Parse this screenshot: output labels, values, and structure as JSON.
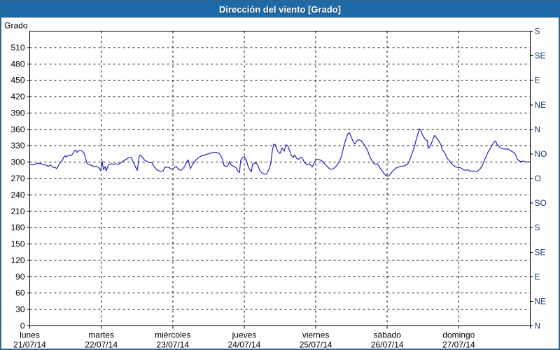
{
  "window": {
    "title": "Dirección del viento [Grado]"
  },
  "colors": {
    "titlebar": "#1e6aa8",
    "titlebar_border": "#15507f",
    "outer_border": "#2d6595",
    "line": "#2222c0",
    "grid": "#000000",
    "left_label": "#000000",
    "right_label": "#1b3c6e",
    "day_label": "#000000"
  },
  "chart_data": {
    "type": "line",
    "title": "Dirección del viento [Grado]",
    "ylabel": "Grado",
    "grid": "dashed, every 30 degrees horizontal, daily vertical",
    "legend_position": "none",
    "y_axis_left": {
      "label": "Grado",
      "min": 0,
      "max": 540,
      "tick_step": 30,
      "tick_labels": [
        "0",
        "30",
        "60",
        "90",
        "120",
        "150",
        "180",
        "210",
        "240",
        "270",
        "300",
        "330",
        "360",
        "390",
        "420",
        "450",
        "480",
        "510"
      ]
    },
    "y_axis_right": {
      "tick_step": 45,
      "labels_bottom_to_top": [
        "N",
        "NE",
        "E",
        "SE",
        "S",
        "SO",
        "O",
        "NO",
        "N",
        "NE",
        "E",
        "SE",
        "S"
      ]
    },
    "x_axis": {
      "unit": "hours since Monday 00:00",
      "min": 0,
      "max": 168,
      "days": [
        {
          "name": "lunes",
          "date": "21/07/14"
        },
        {
          "name": "martes",
          "date": "22/07/14"
        },
        {
          "name": "miércoles",
          "date": "23/07/14"
        },
        {
          "name": "jueves",
          "date": "24/07/14"
        },
        {
          "name": "viernes",
          "date": "25/07/14"
        },
        {
          "name": "sábado",
          "date": "26/07/14"
        },
        {
          "name": "domingo",
          "date": "27/07/14"
        }
      ]
    },
    "series": [
      {
        "name": "Dirección del viento",
        "color": "#2222c0",
        "points": [
          [
            0,
            296
          ],
          [
            0.6,
            295
          ],
          [
            1.5,
            295
          ],
          [
            2.2,
            297
          ],
          [
            2.9,
            298
          ],
          [
            3.9,
            297
          ],
          [
            4.6,
            295
          ],
          [
            5.3,
            295
          ],
          [
            6.2,
            292
          ],
          [
            6.9,
            295
          ],
          [
            7.6,
            291
          ],
          [
            8.6,
            290
          ],
          [
            9,
            288
          ],
          [
            9.8,
            295
          ],
          [
            10.2,
            299
          ],
          [
            10.9,
            303
          ],
          [
            11.4,
            309
          ],
          [
            11.9,
            312
          ],
          [
            12.3,
            309
          ],
          [
            12.8,
            312
          ],
          [
            13.3,
            313
          ],
          [
            14,
            312
          ],
          [
            14.5,
            316
          ],
          [
            14.9,
            320
          ],
          [
            15.4,
            322
          ],
          [
            15.9,
            318
          ],
          [
            16.3,
            320
          ],
          [
            16.8,
            322
          ],
          [
            17.3,
            321
          ],
          [
            17.7,
            320
          ],
          [
            18.2,
            316
          ],
          [
            18.7,
            308
          ],
          [
            19.1,
            299
          ],
          [
            19.6,
            296
          ],
          [
            20.1,
            295
          ],
          [
            20.8,
            294
          ],
          [
            21.5,
            292
          ],
          [
            22.2,
            292
          ],
          [
            22.9,
            291
          ],
          [
            23.4,
            288
          ],
          [
            23.8,
            284
          ],
          [
            24.3,
            302
          ],
          [
            24.8,
            286
          ],
          [
            25.3,
            292
          ],
          [
            25.7,
            284
          ],
          [
            26.4,
            295
          ],
          [
            27.4,
            297
          ],
          [
            28.1,
            296
          ],
          [
            28.8,
            297
          ],
          [
            29.7,
            296
          ],
          [
            30.4,
            298
          ],
          [
            31.6,
            303
          ],
          [
            32.3,
            305
          ],
          [
            33.2,
            308
          ],
          [
            34,
            309
          ],
          [
            34.7,
            301
          ],
          [
            35.6,
            290
          ],
          [
            36.1,
            285
          ],
          [
            36.8,
            312
          ],
          [
            37.2,
            313
          ],
          [
            37.9,
            308
          ],
          [
            38.7,
            303
          ],
          [
            39.4,
            301
          ],
          [
            40.3,
            299
          ],
          [
            41,
            299
          ],
          [
            41.7,
            292
          ],
          [
            42.6,
            286
          ],
          [
            43.4,
            284
          ],
          [
            44.1,
            283
          ],
          [
            44.8,
            284
          ],
          [
            45.2,
            290
          ],
          [
            46.2,
            291
          ],
          [
            46.9,
            290
          ],
          [
            47.3,
            287
          ],
          [
            48.1,
            288
          ],
          [
            48.8,
            291
          ],
          [
            49.2,
            292
          ],
          [
            49.9,
            287
          ],
          [
            50.6,
            285
          ],
          [
            51.1,
            286
          ],
          [
            52,
            292
          ],
          [
            52.8,
            302
          ],
          [
            53.2,
            304
          ],
          [
            53.9,
            288
          ],
          [
            54.6,
            295
          ],
          [
            55.3,
            301
          ],
          [
            56.3,
            307
          ],
          [
            57.5,
            311
          ],
          [
            58.6,
            313
          ],
          [
            59.8,
            315
          ],
          [
            61,
            317
          ],
          [
            61.7,
            318
          ],
          [
            62.6,
            318
          ],
          [
            63.3,
            317
          ],
          [
            64,
            313
          ],
          [
            64.7,
            305
          ],
          [
            65.2,
            294
          ],
          [
            65.9,
            292
          ],
          [
            66.4,
            293
          ],
          [
            67.1,
            301
          ],
          [
            67.5,
            295
          ],
          [
            68.5,
            292
          ],
          [
            69.2,
            290
          ],
          [
            69.7,
            285
          ],
          [
            70.4,
            281
          ],
          [
            70.8,
            303
          ],
          [
            71.5,
            309
          ],
          [
            72,
            310
          ],
          [
            72.7,
            304
          ],
          [
            73.2,
            294
          ],
          [
            73.7,
            287
          ],
          [
            74.4,
            282
          ],
          [
            74.8,
            296
          ],
          [
            75.8,
            299
          ],
          [
            76.5,
            295
          ],
          [
            77.2,
            285
          ],
          [
            77.9,
            280
          ],
          [
            78.8,
            278
          ],
          [
            79.5,
            278
          ],
          [
            80.2,
            286
          ],
          [
            80.9,
            297
          ],
          [
            81.4,
            320
          ],
          [
            81.9,
            333
          ],
          [
            82.4,
            332
          ],
          [
            82.8,
            325
          ],
          [
            83.5,
            318
          ],
          [
            84,
            316
          ],
          [
            84.7,
            326
          ],
          [
            85.4,
            320
          ],
          [
            86.1,
            332
          ],
          [
            86.6,
            330
          ],
          [
            87.3,
            320
          ],
          [
            87.8,
            312
          ],
          [
            88.5,
            309
          ],
          [
            88.9,
            313
          ],
          [
            89.6,
            307
          ],
          [
            90.1,
            305
          ],
          [
            90.8,
            308
          ],
          [
            91.5,
            308
          ],
          [
            92.2,
            299
          ],
          [
            93.2,
            295
          ],
          [
            93.9,
            297
          ],
          [
            94.8,
            291
          ],
          [
            95.5,
            299
          ],
          [
            96.2,
            305
          ],
          [
            96.9,
            305
          ],
          [
            97.9,
            303
          ],
          [
            98.6,
            299
          ],
          [
            99.3,
            295
          ],
          [
            100.2,
            290
          ],
          [
            100.9,
            287
          ],
          [
            101.6,
            287
          ],
          [
            102.6,
            291
          ],
          [
            103.3,
            296
          ],
          [
            104,
            302
          ],
          [
            104.7,
            312
          ],
          [
            105.4,
            329
          ],
          [
            106.1,
            342
          ],
          [
            106.8,
            352
          ],
          [
            107.3,
            354
          ],
          [
            108,
            345
          ],
          [
            108.7,
            336
          ],
          [
            109.1,
            333
          ],
          [
            109.8,
            339
          ],
          [
            110.6,
            341
          ],
          [
            111.3,
            339
          ],
          [
            112,
            334
          ],
          [
            112.7,
            328
          ],
          [
            113.4,
            322
          ],
          [
            113.8,
            315
          ],
          [
            114.5,
            306
          ],
          [
            115.3,
            299
          ],
          [
            116,
            296
          ],
          [
            116.7,
            297
          ],
          [
            117.4,
            291
          ],
          [
            118.1,
            285
          ],
          [
            118.8,
            280
          ],
          [
            119.5,
            276
          ],
          [
            120.2,
            274
          ],
          [
            120.9,
            277
          ],
          [
            121.6,
            282
          ],
          [
            122.3,
            286
          ],
          [
            123.2,
            290
          ],
          [
            124.4,
            292
          ],
          [
            125.6,
            293
          ],
          [
            126.8,
            296
          ],
          [
            127.5,
            303
          ],
          [
            128.2,
            314
          ],
          [
            128.9,
            324
          ],
          [
            129.6,
            339
          ],
          [
            130.3,
            352
          ],
          [
            130.8,
            361
          ],
          [
            131.2,
            358
          ],
          [
            131.7,
            352
          ],
          [
            132.2,
            346
          ],
          [
            132.9,
            341
          ],
          [
            133.4,
            340
          ],
          [
            133.8,
            325
          ],
          [
            134.5,
            330
          ],
          [
            135.2,
            340
          ],
          [
            135.9,
            349
          ],
          [
            136.6,
            344
          ],
          [
            137.3,
            339
          ],
          [
            138,
            332
          ],
          [
            138.5,
            323
          ],
          [
            139.2,
            318
          ],
          [
            139.7,
            312
          ],
          [
            140.4,
            305
          ],
          [
            140.9,
            303
          ],
          [
            141.3,
            299
          ],
          [
            142,
            295
          ],
          [
            142.7,
            292
          ],
          [
            143.7,
            290
          ],
          [
            144.4,
            290
          ],
          [
            145.1,
            288
          ],
          [
            145.6,
            286
          ],
          [
            146.3,
            285
          ],
          [
            147,
            286
          ],
          [
            147.7,
            284
          ],
          [
            148.4,
            283
          ],
          [
            149.1,
            284
          ],
          [
            149.8,
            283
          ],
          [
            150.5,
            284
          ],
          [
            151.2,
            288
          ],
          [
            151.9,
            294
          ],
          [
            152.6,
            303
          ],
          [
            153.3,
            312
          ],
          [
            154,
            320
          ],
          [
            154.7,
            326
          ],
          [
            155.4,
            333
          ],
          [
            155.9,
            337
          ],
          [
            156.4,
            339
          ],
          [
            156.8,
            333
          ],
          [
            157.3,
            330
          ],
          [
            157.8,
            327
          ],
          [
            158.5,
            325
          ],
          [
            159.2,
            324
          ],
          [
            159.9,
            324
          ],
          [
            160.6,
            324
          ],
          [
            161.3,
            321
          ],
          [
            162,
            319
          ],
          [
            162.7,
            317
          ],
          [
            163.2,
            312
          ],
          [
            163.6,
            306
          ],
          [
            164.1,
            303
          ],
          [
            164.8,
            301
          ],
          [
            165.5,
            302
          ],
          [
            166.2,
            301
          ],
          [
            166.9,
            300
          ],
          [
            167.9,
            301
          ]
        ]
      }
    ]
  }
}
